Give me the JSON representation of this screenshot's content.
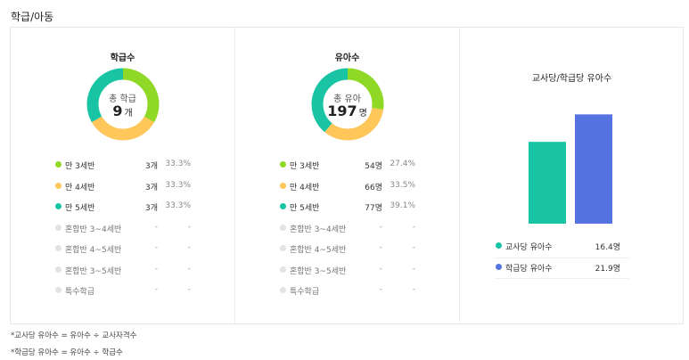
{
  "page": {
    "section_title": "학급/아동"
  },
  "classes": {
    "title": "학급수",
    "center_label": "총 학급",
    "center_value": "9",
    "center_unit": "개",
    "segments": [
      {
        "fraction": 0.333,
        "color": "#8fd826"
      },
      {
        "fraction": 0.333,
        "color": "#ffc65a"
      },
      {
        "fraction": 0.334,
        "color": "#19c4a5"
      }
    ],
    "legend": [
      {
        "label": "만 3세반",
        "value": "3개",
        "pct": "33.3%",
        "color": "#8fd826",
        "disabled": false
      },
      {
        "label": "만 4세반",
        "value": "3개",
        "pct": "33.3%",
        "color": "#ffc65a",
        "disabled": false
      },
      {
        "label": "만 5세반",
        "value": "3개",
        "pct": "33.3%",
        "color": "#19c4a5",
        "disabled": false
      },
      {
        "label": "혼합반 3~4세반",
        "value": "-",
        "pct": "-",
        "color": "#e3e3e3",
        "disabled": true
      },
      {
        "label": "혼합반 4~5세반",
        "value": "-",
        "pct": "-",
        "color": "#e3e3e3",
        "disabled": true
      },
      {
        "label": "혼합반 3~5세반",
        "value": "-",
        "pct": "-",
        "color": "#e3e3e3",
        "disabled": true
      },
      {
        "label": "특수학급",
        "value": "-",
        "pct": "-",
        "color": "#e3e3e3",
        "disabled": true
      }
    ]
  },
  "children": {
    "title": "유아수",
    "center_label": "총 유아",
    "center_value": "197",
    "center_unit": "명",
    "segments": [
      {
        "fraction": 0.274,
        "color": "#8fd826"
      },
      {
        "fraction": 0.335,
        "color": "#ffc65a"
      },
      {
        "fraction": 0.391,
        "color": "#19c4a5"
      }
    ],
    "legend": [
      {
        "label": "만 3세반",
        "value": "54명",
        "pct": "27.4%",
        "color": "#8fd826",
        "disabled": false
      },
      {
        "label": "만 4세반",
        "value": "66명",
        "pct": "33.5%",
        "color": "#ffc65a",
        "disabled": false
      },
      {
        "label": "만 5세반",
        "value": "77명",
        "pct": "39.1%",
        "color": "#19c4a5",
        "disabled": false
      },
      {
        "label": "혼합반 3~4세반",
        "value": "-",
        "pct": "-",
        "color": "#e3e3e3",
        "disabled": true
      },
      {
        "label": "혼합반 4~5세반",
        "value": "-",
        "pct": "-",
        "color": "#e3e3e3",
        "disabled": true
      },
      {
        "label": "혼합반 3~5세반",
        "value": "-",
        "pct": "-",
        "color": "#e3e3e3",
        "disabled": true
      },
      {
        "label": "특수학급",
        "value": "-",
        "pct": "-",
        "color": "#e3e3e3",
        "disabled": true
      }
    ]
  },
  "ratio": {
    "title": "교사당/학급당 유아수",
    "legend": [
      {
        "label": "교사당 유아수",
        "value": "16.4명",
        "color": "#19c4a5"
      },
      {
        "label": "학급당 유아수",
        "value": "21.9명",
        "color": "#5472e0"
      }
    ]
  },
  "chart_data": {
    "type": "bar",
    "title": "교사당/학급당 유아수",
    "categories": [
      "교사당 유아수",
      "학급당 유아수"
    ],
    "values": [
      16.4,
      21.9
    ],
    "colors": [
      "#19c4a5",
      "#5472e0"
    ],
    "ylim": [
      0,
      25
    ],
    "grid": false,
    "legend": "bottom"
  },
  "footnotes": [
    "*교사당 유아수 = 유아수 ÷ 교사자격수",
    "*학급당 유아수 = 유아수 ÷ 학급수"
  ]
}
